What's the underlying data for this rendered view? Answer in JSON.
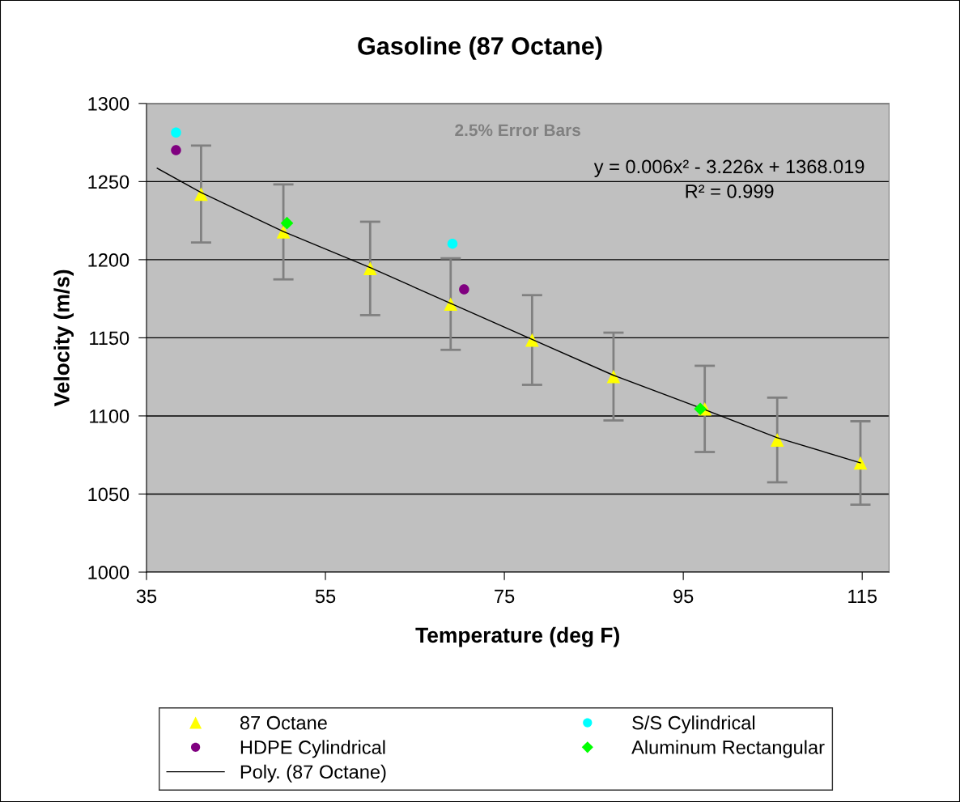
{
  "chart_data": {
    "type": "scatter",
    "title": "Gasoline (87 Octane)",
    "xlabel": "Temperature (deg F)",
    "ylabel": "Velocity (m/s)",
    "xlim": [
      35,
      118
    ],
    "xticks": [
      35,
      55,
      75,
      95,
      115
    ],
    "ylim": [
      1000,
      1300
    ],
    "yticks": [
      1000,
      1050,
      1100,
      1150,
      1200,
      1250,
      1300
    ],
    "grid": "y",
    "legend": "bottom",
    "annotations": [
      "2.5% Error Bars",
      "y = 0.006x² - 3.226x + 1368.019\nR² = 0.999"
    ],
    "series": [
      {
        "name": "87 Octane",
        "marker": "triangle",
        "color": "#ffff00",
        "x": [
          41.1,
          50.3,
          60.0,
          69.0,
          78.1,
          87.2,
          97.4,
          105.5,
          114.8
        ],
        "values": [
          1242,
          1217.8,
          1194.4,
          1171.6,
          1148.6,
          1125.2,
          1104.5,
          1084.6,
          1069.9
        ],
        "errors": [
          31,
          30.4,
          29.9,
          29.3,
          28.7,
          28.1,
          27.6,
          27.1,
          26.7
        ]
      },
      {
        "name": "S/S Cylindrical",
        "marker": "circle",
        "color": "#00ffff",
        "x": [
          38.3,
          69.2
        ],
        "values": [
          1281.4,
          1210.2
        ]
      },
      {
        "name": "HDPE Cylindrical",
        "marker": "circle",
        "color": "#800080",
        "x": [
          38.3,
          70.5
        ],
        "values": [
          1270.1,
          1181
        ]
      },
      {
        "name": "Aluminum Rectangular",
        "marker": "diamond",
        "color": "#00ff00",
        "x": [
          50.7,
          96.9
        ],
        "values": [
          1223.4,
          1104.5
        ]
      },
      {
        "name": "Poly. (87 Octane)",
        "type": "line",
        "marker": "none",
        "color": "#000000",
        "x": [
          36.2,
          41.1,
          50.3,
          60.0,
          69.0,
          78.1,
          87.2,
          97.4,
          105.5,
          114.8
        ],
        "values": [
          1258.5,
          1243,
          1218,
          1195,
          1172,
          1149,
          1126,
          1104,
          1086,
          1070
        ]
      }
    ]
  }
}
